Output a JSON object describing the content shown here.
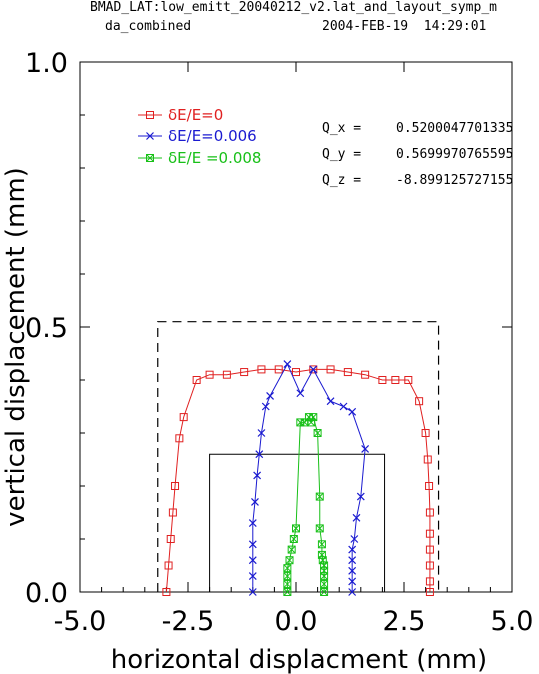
{
  "header": {
    "title_line1": "BMAD_LAT:low_emitt_20040212_v2.lat_and_layout_symp_m",
    "title_line2": "da_combined",
    "timestamp": "2004-FEB-19  14:29:01"
  },
  "tunes": [
    {
      "label": "Q_x =",
      "value": "0.5200047701335"
    },
    {
      "label": "Q_y =",
      "value": "0.5699970765595"
    },
    {
      "label": "Q_z =",
      "value": "-8.899125727155"
    }
  ],
  "chart_data": {
    "type": "line",
    "xlabel": "horizontal displacment (mm)",
    "ylabel": "vertical displacement (mm)",
    "xlim": [
      -5.0,
      5.0
    ],
    "ylim": [
      0.0,
      1.0
    ],
    "xticks": [
      "-5.0",
      "-2.5",
      "0.0",
      "2.5",
      "5.0"
    ],
    "yticks": [
      "0.0",
      "0.5",
      "1.0"
    ],
    "series": [
      {
        "name": "δE/E=0",
        "color": "#e02020",
        "marker": "square",
        "x": [
          -3.0,
          -2.95,
          -2.9,
          -2.85,
          -2.8,
          -2.7,
          -2.6,
          -2.3,
          -2.0,
          -1.6,
          -1.2,
          -0.8,
          -0.4,
          0.0,
          0.4,
          0.8,
          1.2,
          1.6,
          2.0,
          2.3,
          2.6,
          2.85,
          3.0,
          3.05,
          3.08,
          3.1,
          3.1,
          3.1,
          3.1,
          3.1,
          3.1
        ],
        "y": [
          0.0,
          0.05,
          0.1,
          0.15,
          0.2,
          0.29,
          0.33,
          0.4,
          0.41,
          0.41,
          0.415,
          0.42,
          0.42,
          0.415,
          0.42,
          0.42,
          0.415,
          0.41,
          0.4,
          0.4,
          0.4,
          0.36,
          0.3,
          0.25,
          0.2,
          0.15,
          0.11,
          0.08,
          0.05,
          0.02,
          0.0
        ]
      },
      {
        "name": "δE/E=0.006",
        "color": "#1a1ad0",
        "marker": "x",
        "x": [
          -1.0,
          -1.0,
          -1.0,
          -1.0,
          -1.0,
          -0.95,
          -0.9,
          -0.85,
          -0.8,
          -0.7,
          -0.6,
          -0.2,
          0.1,
          0.4,
          0.8,
          1.1,
          1.3,
          1.6,
          1.5,
          1.4,
          1.35,
          1.3,
          1.3,
          1.3,
          1.3,
          1.3
        ],
        "y": [
          0.0,
          0.03,
          0.06,
          0.09,
          0.13,
          0.17,
          0.22,
          0.26,
          0.3,
          0.35,
          0.37,
          0.43,
          0.375,
          0.42,
          0.36,
          0.35,
          0.34,
          0.27,
          0.18,
          0.14,
          0.1,
          0.08,
          0.06,
          0.04,
          0.02,
          0.0
        ],
        "extra_left": {
          "x": [
            -0.2
          ],
          "y": [
            0.43
          ]
        }
      },
      {
        "name": "δE/E =0.008",
        "color": "#18c018",
        "marker": "boxed-x",
        "x": [
          -0.2,
          -0.2,
          -0.2,
          -0.2,
          -0.15,
          -0.1,
          -0.05,
          0.0,
          0.1,
          0.2,
          0.3,
          0.35,
          0.4,
          0.5,
          0.55,
          0.55,
          0.6,
          0.6,
          0.62,
          0.65,
          0.65,
          0.65,
          0.65,
          0.65
        ],
        "y": [
          0.0,
          0.015,
          0.03,
          0.045,
          0.06,
          0.08,
          0.1,
          0.12,
          0.32,
          0.32,
          0.33,
          0.32,
          0.33,
          0.3,
          0.18,
          0.12,
          0.09,
          0.07,
          0.06,
          0.05,
          0.04,
          0.03,
          0.015,
          0.0
        ]
      }
    ],
    "legend_placement": "top-left",
    "aperture_dashed": {
      "x": [
        -3.2,
        3.3
      ],
      "y": [
        0.0,
        0.51
      ]
    },
    "aperture_solid": {
      "x": [
        -2.0,
        2.05
      ],
      "y": [
        0.0,
        0.26
      ]
    }
  }
}
